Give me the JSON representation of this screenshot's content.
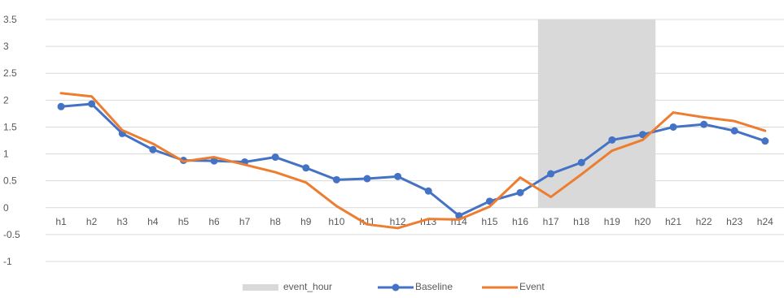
{
  "chart_data": {
    "type": "line",
    "title": "",
    "xlabel": "",
    "ylabel": "",
    "categories": [
      "h1",
      "h2",
      "h3",
      "h4",
      "h5",
      "h6",
      "h7",
      "h8",
      "h9",
      "h10",
      "h11",
      "h12",
      "h13",
      "h14",
      "h15",
      "h16",
      "h17",
      "h18",
      "h19",
      "h20",
      "h21",
      "h22",
      "h23",
      "h24"
    ],
    "ylim": [
      -1,
      3.5
    ],
    "yticks": [
      3.5,
      3,
      2.5,
      2,
      1.5,
      1,
      0.5,
      0,
      -0.5,
      -1
    ],
    "grid": true,
    "legend_position": "bottom",
    "event_hour": {
      "name": "event_hour",
      "categories": [
        "h17",
        "h18",
        "h19",
        "h20"
      ],
      "value": 3.5,
      "color": "#d9d9d9"
    },
    "series": [
      {
        "name": "Baseline",
        "color": "#4472c4",
        "marker": "circle",
        "values": [
          1.88,
          1.93,
          1.38,
          1.08,
          0.88,
          0.87,
          0.85,
          0.94,
          0.74,
          0.52,
          0.54,
          0.58,
          0.31,
          -0.15,
          0.12,
          0.28,
          0.63,
          0.84,
          1.26,
          1.36,
          1.5,
          1.55,
          1.43,
          1.24
        ]
      },
      {
        "name": "Event",
        "color": "#ed7d31",
        "marker": "none",
        "values": [
          2.13,
          2.07,
          1.44,
          1.19,
          0.86,
          0.94,
          0.8,
          0.66,
          0.47,
          0.03,
          -0.31,
          -0.38,
          -0.21,
          -0.22,
          0.02,
          0.56,
          0.2,
          0.62,
          1.06,
          1.26,
          1.77,
          1.68,
          1.61,
          1.43
        ]
      }
    ]
  }
}
